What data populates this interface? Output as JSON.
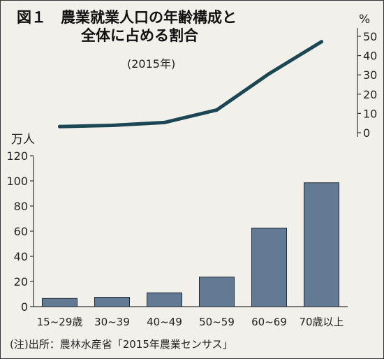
{
  "title_line1": "図１　農業就業人口の年齢構成と",
  "title_line2": "全体に占める割合",
  "subtitle": "(2015年)",
  "source": "(注)出所：農林水産省「2015年農業センサス」",
  "chart_data": [
    {
      "type": "bar",
      "categories": [
        "15~29歳",
        "30~39",
        "40~49",
        "50~59",
        "60~69",
        "70歳以上"
      ],
      "values": [
        6.5,
        7.5,
        11,
        23.5,
        62.5,
        98.5
      ],
      "ylabel": "万人",
      "ylim": [
        0,
        120
      ],
      "yticks": [
        0,
        20,
        40,
        60,
        80,
        100,
        120
      ],
      "bar_color": "#627a93"
    },
    {
      "type": "line",
      "categories": [
        "15~29歳",
        "30~39",
        "40~49",
        "50~59",
        "60~69",
        "70歳以上"
      ],
      "values": [
        3.2,
        3.8,
        5.3,
        11.8,
        30.6,
        47.2
      ],
      "ylabel": "%",
      "ylim": [
        0,
        50
      ],
      "yticks": [
        0,
        10,
        20,
        30,
        40,
        50
      ],
      "line_color": "#1c4654"
    }
  ]
}
